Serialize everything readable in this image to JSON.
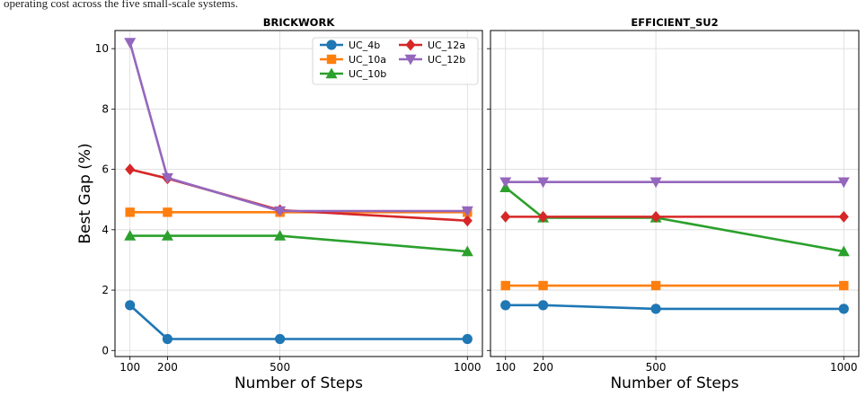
{
  "caption": "operating cost across the five small-scale systems.",
  "chart_data": [
    {
      "type": "line",
      "title": "BRICKWORK",
      "xlabel": "Number of Steps",
      "ylabel": "Best Gap (%)",
      "x": [
        100,
        200,
        500,
        1000
      ],
      "xlim": [
        60,
        1040
      ],
      "ylim": [
        -0.2,
        10.6
      ],
      "xticks": [
        "100",
        "200",
        "500",
        "1000"
      ],
      "yticks": [
        "0",
        "2",
        "4",
        "6",
        "8",
        "10"
      ],
      "grid": true,
      "legend": "top-right",
      "series": [
        {
          "name": "UC_4b",
          "color": "#1f77b4",
          "marker": "circle",
          "values": [
            1.5,
            0.38,
            0.38,
            0.38
          ]
        },
        {
          "name": "UC_10a",
          "color": "#ff7f0e",
          "marker": "square",
          "values": [
            4.58,
            4.58,
            4.58,
            4.58
          ]
        },
        {
          "name": "UC_10b",
          "color": "#2ca02c",
          "marker": "triangle",
          "values": [
            3.8,
            3.8,
            3.8,
            3.28
          ]
        },
        {
          "name": "UC_12a",
          "color": "#d62728",
          "marker": "diamond",
          "values": [
            6.0,
            5.7,
            4.65,
            4.3
          ]
        },
        {
          "name": "UC_12b",
          "color": "#9467bd",
          "marker": "tri-down",
          "values": [
            10.2,
            5.72,
            4.62,
            4.62
          ]
        }
      ]
    },
    {
      "type": "line",
      "title": "EFFICIENT_SU2",
      "xlabel": "Number of Steps",
      "ylabel": "",
      "x": [
        100,
        200,
        500,
        1000
      ],
      "xlim": [
        60,
        1040
      ],
      "ylim": [
        -0.2,
        10.6
      ],
      "xticks": [
        "100",
        "200",
        "500",
        "1000"
      ],
      "yticks": [],
      "grid": true,
      "legend": "",
      "series": [
        {
          "name": "UC_4b",
          "color": "#1f77b4",
          "marker": "circle",
          "values": [
            1.5,
            1.5,
            1.38,
            1.38
          ]
        },
        {
          "name": "UC_10a",
          "color": "#ff7f0e",
          "marker": "square",
          "values": [
            2.15,
            2.15,
            2.15,
            2.15
          ]
        },
        {
          "name": "UC_10b",
          "color": "#2ca02c",
          "marker": "triangle",
          "values": [
            5.4,
            4.4,
            4.4,
            3.28
          ]
        },
        {
          "name": "UC_12a",
          "color": "#d62728",
          "marker": "diamond",
          "values": [
            4.43,
            4.43,
            4.43,
            4.43
          ]
        },
        {
          "name": "UC_12b",
          "color": "#9467bd",
          "marker": "tri-down",
          "values": [
            5.58,
            5.58,
            5.58,
            5.58
          ]
        }
      ]
    }
  ]
}
